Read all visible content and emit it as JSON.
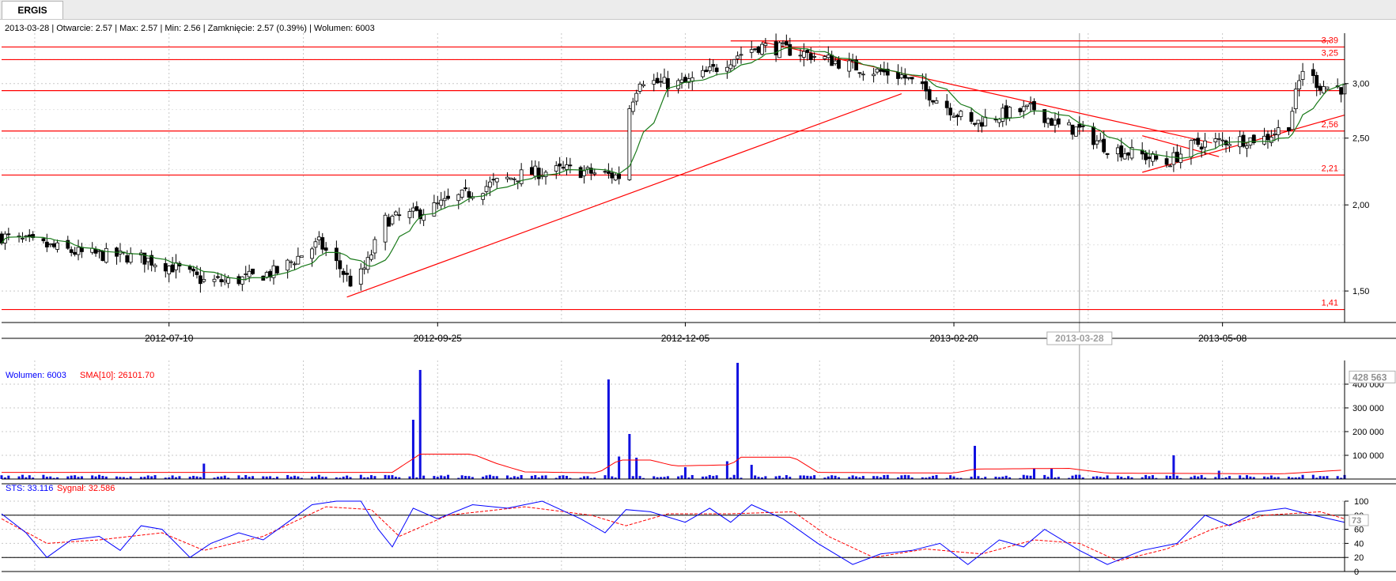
{
  "window": {
    "tab_label": "ERGIS"
  },
  "info_bar": {
    "date": "2013-03-28",
    "open_label": "Otwarcie:",
    "open": "2.57",
    "max_label": "Max:",
    "max": "2.57",
    "min_label": "Min:",
    "min": "2.56",
    "close_label": "Zamknięcie:",
    "close": "2.57",
    "change": "(0.39%)",
    "volume_label": "Wolumen:",
    "volume": "6003",
    "text": "2013-03-28 | Otwarcie: 2.57 | Max: 2.57 | Min: 2.56 | Zamknięcie: 2.57 (0.39%)  | Wolumen: 6003"
  },
  "colors": {
    "up_candle": "#ffffff",
    "down_candle": "#000000",
    "sma_price": "#1a7a1a",
    "support_resistance": "#ff0000",
    "volume_bar": "#1010e0",
    "volume_sma": "#ff0000",
    "sts": "#0000ff",
    "signal": "#ff0000",
    "grid": "#c8c8c8"
  },
  "chart_data": [
    {
      "type": "candlestick",
      "title": "ERGIS",
      "y_scale": "log",
      "ylim": [
        1.35,
        3.55
      ],
      "xlim": [
        "2012-05-23",
        "2013-06-12"
      ],
      "y_ticks": [
        "1,50",
        "2,00",
        "2,50",
        "3,00"
      ],
      "x_ticks": [
        "2012-07-10",
        "2012-09-25",
        "2012-12-05",
        "2013-02-20",
        "2013-05-08"
      ],
      "cursor_date": "2013-03-28",
      "grid": true,
      "horizontal_levels": [
        {
          "value": 3.39,
          "label": "3,39"
        },
        {
          "value": 3.25,
          "label": "3,25"
        },
        {
          "value": 2.93,
          "label": ""
        },
        {
          "value": 2.56,
          "label": "2,56"
        },
        {
          "value": 2.21,
          "label": "2,21"
        },
        {
          "value": 1.41,
          "label": "1,41"
        }
      ],
      "top_line": {
        "x1": "2012-12-18",
        "x2": "2013-06-08",
        "value": 3.46
      },
      "trend_lines": [
        {
          "x1": "2012-08-30",
          "y1": 1.47,
          "x2": "2013-02-05",
          "y2": 2.9
        },
        {
          "x1": "2012-12-27",
          "y1": 3.45,
          "x2": "2013-05-05",
          "y2": 2.46
        },
        {
          "x1": "2013-04-15",
          "y1": 2.23,
          "x2": "2013-06-12",
          "y2": 2.7
        },
        {
          "x1": "2013-04-15",
          "y1": 2.52,
          "x2": "2013-05-07",
          "y2": 2.35
        }
      ],
      "price_path": [
        [
          "2012-05-23",
          1.8
        ],
        [
          "2012-06-01",
          1.76
        ],
        [
          "2012-06-15",
          1.7
        ],
        [
          "2012-07-01",
          1.68
        ],
        [
          "2012-07-12",
          1.62
        ],
        [
          "2012-07-20",
          1.55
        ],
        [
          "2012-07-28",
          1.55
        ],
        [
          "2012-08-10",
          1.6
        ],
        [
          "2012-08-22",
          1.76
        ],
        [
          "2012-08-28",
          1.62
        ],
        [
          "2012-09-01",
          1.52
        ],
        [
          "2012-09-05",
          1.65
        ],
        [
          "2012-09-10",
          1.9
        ],
        [
          "2012-09-20",
          1.95
        ],
        [
          "2012-10-01",
          2.05
        ],
        [
          "2012-10-10",
          2.14
        ],
        [
          "2012-10-20",
          2.22
        ],
        [
          "2012-11-01",
          2.25
        ],
        [
          "2012-11-10",
          2.22
        ],
        [
          "2012-11-16",
          2.2
        ],
        [
          "2012-11-18",
          2.68
        ],
        [
          "2012-11-22",
          3.05
        ],
        [
          "2012-11-28",
          3.0
        ],
        [
          "2012-12-05",
          3.0
        ],
        [
          "2012-12-12",
          3.12
        ],
        [
          "2012-12-20",
          3.3
        ],
        [
          "2012-12-26",
          3.4
        ],
        [
          "2013-01-05",
          3.35
        ],
        [
          "2013-01-15",
          3.25
        ],
        [
          "2013-01-25",
          3.15
        ],
        [
          "2013-02-05",
          3.08
        ],
        [
          "2013-02-12",
          2.92
        ],
        [
          "2013-02-18",
          2.78
        ],
        [
          "2013-02-25",
          2.62
        ],
        [
          "2013-03-05",
          2.7
        ],
        [
          "2013-03-15",
          2.76
        ],
        [
          "2013-03-22",
          2.6
        ],
        [
          "2013-03-28",
          2.57
        ],
        [
          "2013-04-05",
          2.42
        ],
        [
          "2013-04-15",
          2.36
        ],
        [
          "2013-04-22",
          2.3
        ],
        [
          "2013-04-30",
          2.45
        ],
        [
          "2013-05-10",
          2.48
        ],
        [
          "2013-05-20",
          2.5
        ],
        [
          "2013-05-27",
          2.62
        ],
        [
          "2013-05-31",
          3.15
        ],
        [
          "2013-06-05",
          2.98
        ],
        [
          "2013-06-12",
          2.95
        ]
      ]
    },
    {
      "type": "bar",
      "title": "Wolumen",
      "legend": [
        {
          "name": "Wolumen:",
          "value": "6003"
        },
        {
          "name": "SMA[10]:",
          "value": "26101.70"
        }
      ],
      "y_ticks": [
        "100 000",
        "200 000",
        "300 000",
        "400 000"
      ],
      "current_value_box": "428 563",
      "ylim": [
        0,
        500000
      ],
      "base_level": 10000,
      "spikes": [
        [
          "2012-07-08",
          32000
        ],
        [
          "2012-07-20",
          65000
        ],
        [
          "2012-09-16",
          240000
        ],
        [
          "2012-09-18",
          250000
        ],
        [
          "2012-09-20",
          460000
        ],
        [
          "2012-11-13",
          420000
        ],
        [
          "2012-11-16",
          95000
        ],
        [
          "2012-11-17",
          190000
        ],
        [
          "2012-11-19",
          190000
        ],
        [
          "2012-11-21",
          90000
        ],
        [
          "2012-12-05",
          50000
        ],
        [
          "2012-12-09",
          65000
        ],
        [
          "2012-12-17",
          75000
        ],
        [
          "2012-12-20",
          490000
        ],
        [
          "2012-12-22",
          70000
        ],
        [
          "2012-12-24",
          60000
        ],
        [
          "2013-02-26",
          140000
        ],
        [
          "2013-03-15",
          45000
        ],
        [
          "2013-03-20",
          45000
        ],
        [
          "2013-04-24",
          100000
        ],
        [
          "2013-05-07",
          35000
        ],
        [
          "2013-06-02",
          65000
        ]
      ],
      "sma_path": [
        [
          "2012-05-23",
          28000
        ],
        [
          "2012-09-12",
          28000
        ],
        [
          "2012-09-20",
          105000
        ],
        [
          "2012-10-05",
          105000
        ],
        [
          "2012-10-12",
          65000
        ],
        [
          "2012-10-20",
          30000
        ],
        [
          "2012-11-10",
          26000
        ],
        [
          "2012-11-16",
          80000
        ],
        [
          "2012-11-25",
          80000
        ],
        [
          "2012-12-02",
          55000
        ],
        [
          "2012-12-18",
          60000
        ],
        [
          "2012-12-21",
          92000
        ],
        [
          "2013-01-05",
          92000
        ],
        [
          "2013-01-12",
          28000
        ],
        [
          "2013-02-20",
          25000
        ],
        [
          "2013-02-26",
          42000
        ],
        [
          "2013-03-25",
          45000
        ],
        [
          "2013-04-05",
          25000
        ],
        [
          "2013-05-25",
          22000
        ],
        [
          "2013-06-12",
          38000
        ]
      ]
    },
    {
      "type": "line",
      "title": "STS",
      "legend": [
        {
          "name": "STS:",
          "value": "33.116"
        },
        {
          "name": "Sygnał:",
          "value": "32.586"
        }
      ],
      "ylim": [
        0,
        100
      ],
      "y_ticks": [
        "0",
        "20",
        "40",
        "60",
        "80",
        "100"
      ],
      "reference_lines": [
        80,
        20
      ],
      "current_value_box": "73",
      "sts_path": [
        [
          "2012-05-23",
          82
        ],
        [
          "2012-05-30",
          55
        ],
        [
          "2012-06-05",
          20
        ],
        [
          "2012-06-12",
          45
        ],
        [
          "2012-06-20",
          50
        ],
        [
          "2012-06-26",
          30
        ],
        [
          "2012-07-02",
          65
        ],
        [
          "2012-07-08",
          60
        ],
        [
          "2012-07-16",
          20
        ],
        [
          "2012-07-22",
          40
        ],
        [
          "2012-07-30",
          55
        ],
        [
          "2012-08-06",
          45
        ],
        [
          "2012-08-13",
          70
        ],
        [
          "2012-08-20",
          95
        ],
        [
          "2012-08-27",
          100
        ],
        [
          "2012-09-03",
          100
        ],
        [
          "2012-09-08",
          60
        ],
        [
          "2012-09-12",
          35
        ],
        [
          "2012-09-18",
          90
        ],
        [
          "2012-09-25",
          75
        ],
        [
          "2012-10-05",
          95
        ],
        [
          "2012-10-15",
          90
        ],
        [
          "2012-10-25",
          100
        ],
        [
          "2012-11-05",
          75
        ],
        [
          "2012-11-12",
          55
        ],
        [
          "2012-11-18",
          88
        ],
        [
          "2012-11-25",
          85
        ],
        [
          "2012-12-05",
          70
        ],
        [
          "2012-12-12",
          90
        ],
        [
          "2012-12-18",
          70
        ],
        [
          "2012-12-24",
          95
        ],
        [
          "2013-01-02",
          75
        ],
        [
          "2013-01-12",
          40
        ],
        [
          "2013-01-22",
          10
        ],
        [
          "2013-01-30",
          25
        ],
        [
          "2013-02-08",
          30
        ],
        [
          "2013-02-16",
          40
        ],
        [
          "2013-02-24",
          10
        ],
        [
          "2013-03-05",
          45
        ],
        [
          "2013-03-12",
          35
        ],
        [
          "2013-03-18",
          60
        ],
        [
          "2013-03-28",
          30
        ],
        [
          "2013-04-05",
          10
        ],
        [
          "2013-04-15",
          30
        ],
        [
          "2013-04-25",
          40
        ],
        [
          "2013-05-03",
          80
        ],
        [
          "2013-05-10",
          65
        ],
        [
          "2013-05-18",
          85
        ],
        [
          "2013-05-26",
          90
        ],
        [
          "2013-06-03",
          80
        ],
        [
          "2013-06-12",
          70
        ]
      ],
      "signal_path": [
        [
          "2012-05-23",
          75
        ],
        [
          "2012-06-05",
          40
        ],
        [
          "2012-06-20",
          45
        ],
        [
          "2012-07-08",
          55
        ],
        [
          "2012-07-20",
          30
        ],
        [
          "2012-08-06",
          50
        ],
        [
          "2012-08-24",
          92
        ],
        [
          "2012-09-06",
          88
        ],
        [
          "2012-09-14",
          50
        ],
        [
          "2012-09-28",
          80
        ],
        [
          "2012-10-20",
          92
        ],
        [
          "2012-11-08",
          80
        ],
        [
          "2012-11-18",
          65
        ],
        [
          "2012-11-30",
          82
        ],
        [
          "2012-12-18",
          82
        ],
        [
          "2013-01-05",
          85
        ],
        [
          "2013-01-15",
          50
        ],
        [
          "2013-01-28",
          20
        ],
        [
          "2013-02-12",
          32
        ],
        [
          "2013-02-28",
          25
        ],
        [
          "2013-03-15",
          45
        ],
        [
          "2013-03-28",
          40
        ],
        [
          "2013-04-08",
          15
        ],
        [
          "2013-04-22",
          32
        ],
        [
          "2013-05-05",
          60
        ],
        [
          "2013-05-20",
          80
        ],
        [
          "2013-06-05",
          85
        ],
        [
          "2013-06-12",
          75
        ]
      ]
    }
  ]
}
